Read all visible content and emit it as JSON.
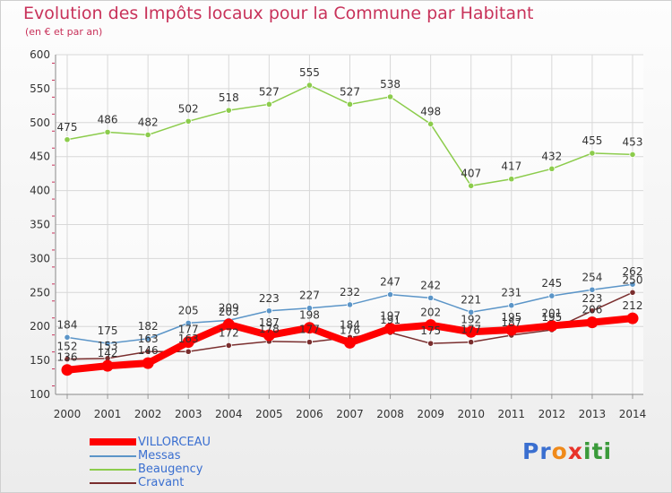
{
  "header": {
    "title": "Evolution des Impôts locaux pour la Commune par Habitant",
    "subtitle": "(en € et par an)"
  },
  "logo": {
    "text": "Proxiti",
    "letter_colors": [
      "#3a6fd0",
      "#3a6fd0",
      "#f08a1a",
      "#e8332a",
      "#3a9a3a",
      "#3a9a3a",
      "#3a9a3a"
    ]
  },
  "chart_data": {
    "type": "line",
    "title": "Evolution des Impôts locaux pour la Commune par Habitant",
    "subtitle": "(en € et par an)",
    "categories": [
      "2000",
      "2001",
      "2002",
      "2003",
      "2004",
      "2005",
      "2006",
      "2007",
      "2008",
      "2009",
      "2010",
      "2011",
      "2012",
      "2013",
      "2014"
    ],
    "ylim": [
      100,
      600
    ],
    "yticks": [
      100,
      150,
      200,
      250,
      300,
      350,
      400,
      450,
      500,
      550,
      600
    ],
    "grid": true,
    "legend_position": "bottom-left",
    "series": [
      {
        "name": "VILLORCEAU",
        "color": "#ff0000",
        "emphasis": true,
        "values": [
          136,
          142,
          146,
          177,
          203,
          187,
          198,
          176,
          197,
          202,
          192,
          195,
          201,
          206,
          212
        ]
      },
      {
        "name": "Messas",
        "color": "#5b95c8",
        "values": [
          184,
          175,
          182,
          205,
          209,
          223,
          227,
          232,
          247,
          242,
          221,
          231,
          245,
          254,
          262
        ]
      },
      {
        "name": "Beaugency",
        "color": "#8ccc4c",
        "values": [
          475,
          486,
          482,
          502,
          518,
          527,
          555,
          527,
          538,
          498,
          407,
          417,
          432,
          455,
          453
        ]
      },
      {
        "name": "Cravant",
        "color": "#7a2e2e",
        "values": [
          152,
          153,
          163,
          163,
          172,
          178,
          177,
          184,
          191,
          175,
          177,
          187,
          195,
          223,
          250
        ]
      }
    ]
  }
}
